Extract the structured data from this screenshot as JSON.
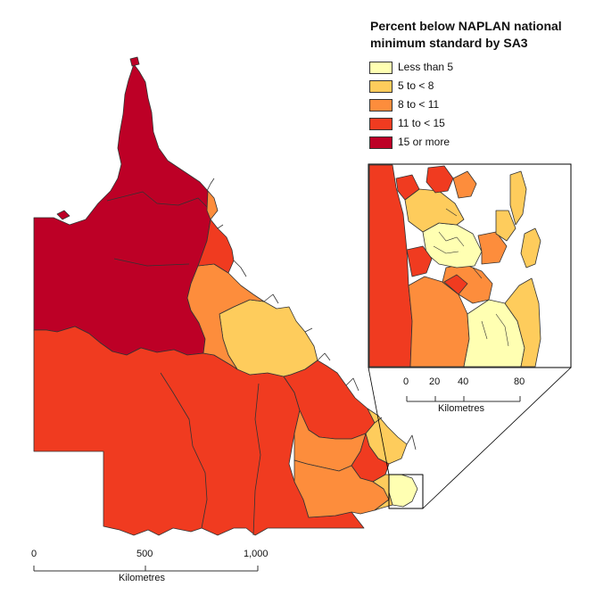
{
  "legend": {
    "title_line1": "Percent below NAPLAN national",
    "title_line2": "minimum standard by SA3",
    "items": [
      {
        "label": "Less than 5",
        "color": "#ffffb2"
      },
      {
        "label": "5 to < 8",
        "color": "#fecc5c"
      },
      {
        "label": "8 to < 11",
        "color": "#fd8d3c"
      },
      {
        "label": "11 to < 15",
        "color": "#f03b20"
      },
      {
        "label": "15 or more",
        "color": "#bd0026"
      }
    ]
  },
  "main_scale": {
    "ticks": [
      "0",
      "500",
      "1,000"
    ],
    "unit": "Kilometres"
  },
  "inset_scale": {
    "ticks": [
      "0",
      "20",
      "40",
      "80"
    ],
    "unit": "Kilometres"
  },
  "colors": {
    "outline": "#333333",
    "inset_frame": "#000000"
  }
}
